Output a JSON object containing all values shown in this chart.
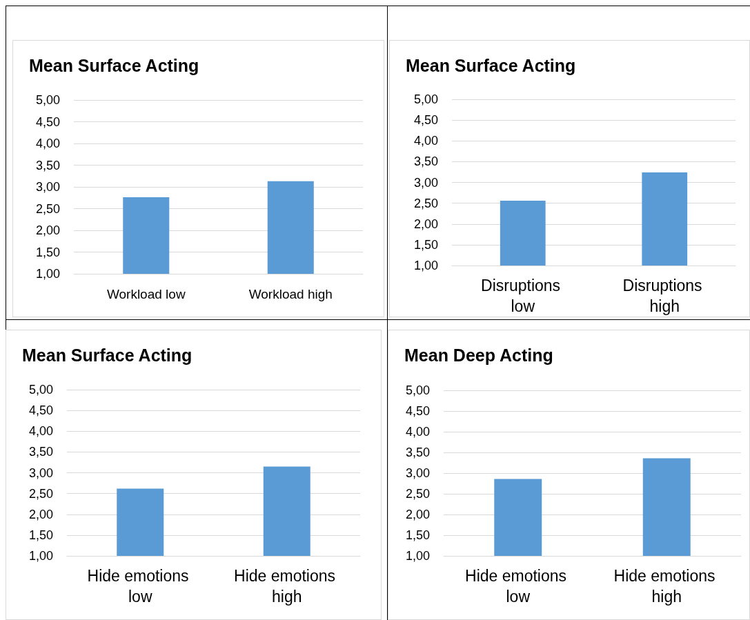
{
  "chart_data": [
    {
      "type": "bar",
      "title": "Mean Surface Acting",
      "categories": [
        "Workload low",
        "Workload high"
      ],
      "values": [
        2.76,
        3.13
      ],
      "color": "#5b9bd5",
      "ylim": [
        1,
        5
      ],
      "yticks": [
        {
          "value": 1,
          "label": "1,00"
        },
        {
          "value": 1.5,
          "label": "1,50"
        },
        {
          "value": 2,
          "label": "2,00"
        },
        {
          "value": 2.5,
          "label": "2,50"
        },
        {
          "value": 3,
          "label": "3,00"
        },
        {
          "value": 3.5,
          "label": "3,50"
        },
        {
          "value": 4,
          "label": "4,00"
        },
        {
          "value": 4.5,
          "label": "4,50"
        },
        {
          "value": 5,
          "label": "5,00"
        }
      ],
      "grid": "y"
    },
    {
      "type": "bar",
      "title": "Mean Surface Acting",
      "categories": [
        "Disruptions low",
        "Disruptions high"
      ],
      "values": [
        2.56,
        3.24
      ],
      "color": "#5b9bd5",
      "ylim": [
        1,
        5
      ],
      "yticks": [
        {
          "value": 1,
          "label": "1,00"
        },
        {
          "value": 1.5,
          "label": "1,50"
        },
        {
          "value": 2,
          "label": "2,00"
        },
        {
          "value": 2.5,
          "label": "2,50"
        },
        {
          "value": 3,
          "label": "3,00"
        },
        {
          "value": 3.5,
          "label": "3,50"
        },
        {
          "value": 4,
          "label": "4,00"
        },
        {
          "value": 4.5,
          "label": "4,50"
        },
        {
          "value": 5,
          "label": "5,00"
        }
      ],
      "grid": "y"
    },
    {
      "type": "bar",
      "title": "Mean Surface Acting",
      "categories": [
        "Hide emotions low",
        "Hide emotions high"
      ],
      "values": [
        2.62,
        3.15
      ],
      "color": "#5b9bd5",
      "ylim": [
        1,
        5
      ],
      "yticks": [
        {
          "value": 1,
          "label": "1,00"
        },
        {
          "value": 1.5,
          "label": "1,50"
        },
        {
          "value": 2,
          "label": "2,00"
        },
        {
          "value": 2.5,
          "label": "2,50"
        },
        {
          "value": 3,
          "label": "3,00"
        },
        {
          "value": 3.5,
          "label": "3,50"
        },
        {
          "value": 4,
          "label": "4,00"
        },
        {
          "value": 4.5,
          "label": "4,50"
        },
        {
          "value": 5,
          "label": "5,00"
        }
      ],
      "grid": "y"
    },
    {
      "type": "bar",
      "title": "Mean Deep Acting",
      "categories": [
        "Hide emotions low",
        "Hide emotions high"
      ],
      "values": [
        2.86,
        3.36
      ],
      "color": "#5b9bd5",
      "ylim": [
        1,
        5
      ],
      "yticks": [
        {
          "value": 1,
          "label": "1,00"
        },
        {
          "value": 1.5,
          "label": "1,50"
        },
        {
          "value": 2,
          "label": "2,00"
        },
        {
          "value": 2.5,
          "label": "2,50"
        },
        {
          "value": 3,
          "label": "3,00"
        },
        {
          "value": 3.5,
          "label": "3,50"
        },
        {
          "value": 4,
          "label": "4,00"
        },
        {
          "value": 4.5,
          "label": "4,50"
        },
        {
          "value": 5,
          "label": "5,00"
        }
      ],
      "grid": "y"
    }
  ]
}
